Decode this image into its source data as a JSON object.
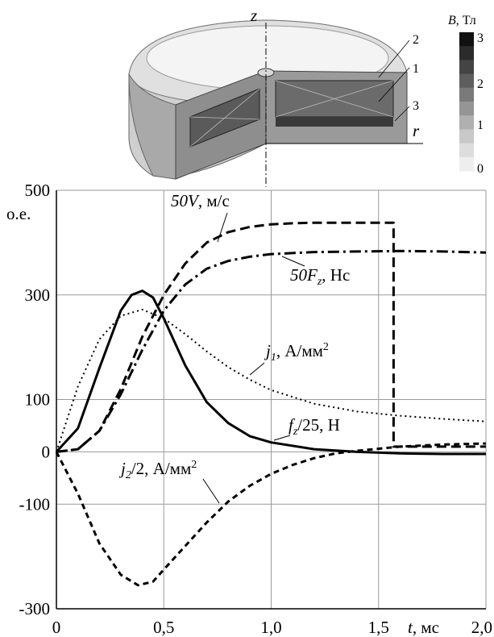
{
  "chart_data": {
    "type": "line",
    "xlabel": "t, мс",
    "ylabel": "о.е.",
    "xlim": [
      0,
      2.0
    ],
    "ylim": [
      -300,
      500
    ],
    "grid": true,
    "x_ticks": [
      "0",
      "0,5",
      "1,0",
      "1,5",
      "2,0"
    ],
    "y_ticks": [
      "500",
      "300",
      "100",
      "0",
      "-100",
      "-300"
    ],
    "series": [
      {
        "name": "50V, м/с",
        "style": "dashed-bold",
        "x": [
          0,
          0.1,
          0.2,
          0.3,
          0.4,
          0.5,
          0.6,
          0.7,
          0.8,
          0.9,
          1.0,
          1.1,
          1.2,
          1.3,
          1.4,
          1.5,
          1.57,
          1.57,
          1.6,
          1.8,
          2.0
        ],
        "y": [
          0,
          5,
          40,
          120,
          220,
          300,
          360,
          400,
          420,
          430,
          435,
          437,
          438,
          438,
          438,
          438,
          438,
          10,
          10,
          10,
          10
        ]
      },
      {
        "name": "50F_z, Нс",
        "style": "dash-dot",
        "x": [
          0,
          0.1,
          0.2,
          0.3,
          0.4,
          0.5,
          0.6,
          0.7,
          0.8,
          0.9,
          1.0,
          1.2,
          1.4,
          1.6,
          1.8,
          2.0
        ],
        "y": [
          0,
          5,
          40,
          110,
          195,
          270,
          320,
          350,
          365,
          373,
          378,
          382,
          383,
          384,
          383,
          381
        ]
      },
      {
        "name": "j_1, А/мм²",
        "style": "dotted",
        "x": [
          0,
          0.1,
          0.2,
          0.3,
          0.4,
          0.5,
          0.6,
          0.7,
          0.8,
          0.9,
          1.0,
          1.2,
          1.4,
          1.6,
          1.8,
          2.0
        ],
        "y": [
          0,
          125,
          215,
          260,
          272,
          255,
          225,
          192,
          162,
          138,
          118,
          92,
          77,
          69,
          63,
          58
        ]
      },
      {
        "name": "f_z/25, Н",
        "style": "solid",
        "x": [
          0,
          0.1,
          0.2,
          0.3,
          0.35,
          0.4,
          0.45,
          0.5,
          0.6,
          0.7,
          0.8,
          0.9,
          1.0,
          1.2,
          1.4,
          1.6,
          1.8,
          2.0
        ],
        "y": [
          0,
          45,
          160,
          270,
          300,
          308,
          295,
          255,
          165,
          95,
          55,
          30,
          18,
          5,
          0,
          -3,
          -4,
          -4
        ]
      },
      {
        "name": "j_2/2, А/мм²",
        "style": "dashed",
        "x": [
          0,
          0.1,
          0.2,
          0.3,
          0.38,
          0.45,
          0.5,
          0.6,
          0.7,
          0.8,
          0.9,
          1.0,
          1.1,
          1.2,
          1.3,
          1.4,
          1.6,
          1.8,
          2.0
        ],
        "y": [
          0,
          -80,
          -175,
          -235,
          -255,
          -248,
          -225,
          -180,
          -135,
          -95,
          -65,
          -42,
          -25,
          -12,
          -3,
          2,
          10,
          14,
          16
        ]
      }
    ],
    "annotations": [
      {
        "text_main": "50V",
        "text_unit": ", м/с"
      },
      {
        "text_main": "50F",
        "sub": "z",
        "text_unit": ", Нс"
      },
      {
        "text_main": "j",
        "sub": "1",
        "text_unit": ", А/мм",
        "sup": "2"
      },
      {
        "text_main": "f",
        "sub": "z",
        "text_unit": "/25, Н"
      },
      {
        "text_main": "j",
        "sub": "2",
        "text_unit": "/2, А/мм",
        "sup": "2"
      }
    ]
  },
  "inset": {
    "axis_z": "z",
    "axis_r": "r",
    "labels": [
      "2",
      "1",
      "3"
    ],
    "colorbar_title": "B",
    "colorbar_unit": ", Тл",
    "colorbar_ticks": [
      "3",
      "2",
      "1",
      "0"
    ],
    "colorbar_colors": [
      "#111111",
      "#2b2b2b",
      "#444444",
      "#5e5e5e",
      "#7a7a7a",
      "#959595",
      "#b0b0b0",
      "#c8c8c8",
      "#dddddd",
      "#eeeeee"
    ]
  }
}
